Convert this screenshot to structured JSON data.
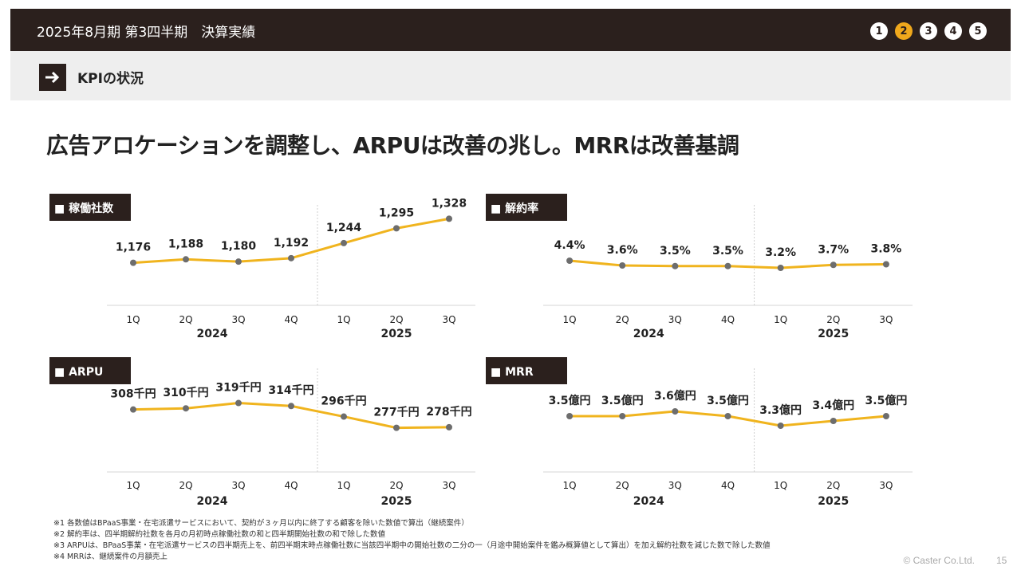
{
  "header": {
    "title": "2025年8月期 第3四半期　決算実績",
    "pages": [
      "1",
      "2",
      "3",
      "4",
      "5"
    ],
    "active_page": "2"
  },
  "section": {
    "label": "KPIの状況",
    "icon": "arrow-right-icon"
  },
  "headline": "広告アロケーションを調整し、ARPUは改善の兆し。MRRは改善基調",
  "colors": {
    "header_bg": "#2b201d",
    "line": "#f0b41e",
    "marker": "#6d6d6d",
    "active_page": "#f0a81c"
  },
  "chart_data": [
    {
      "type": "line",
      "title": "■ 稼働社数",
      "categories": [
        "1Q",
        "2Q",
        "3Q",
        "4Q",
        "1Q",
        "2Q",
        "3Q"
      ],
      "groups": [
        {
          "label": "2024",
          "count": 4
        },
        {
          "label": "2025",
          "count": 3
        }
      ],
      "values": [
        1176,
        1188,
        1180,
        1192,
        1244,
        1295,
        1328
      ],
      "labels": [
        "1,176",
        "1,188",
        "1,180",
        "1,192",
        "1,244",
        "1,295",
        "1,328"
      ],
      "ylim": [
        1120,
        1340
      ]
    },
    {
      "type": "line",
      "title": "■ 解約率",
      "categories": [
        "1Q",
        "2Q",
        "3Q",
        "4Q",
        "1Q",
        "2Q",
        "3Q"
      ],
      "groups": [
        {
          "label": "2024",
          "count": 4
        },
        {
          "label": "2025",
          "count": 3
        }
      ],
      "values": [
        4.4,
        3.6,
        3.5,
        3.5,
        3.2,
        3.7,
        3.8
      ],
      "labels": [
        "4.4%",
        "3.6%",
        "3.5%",
        "3.5%",
        "3.2%",
        "3.7%",
        "3.8%"
      ],
      "ylim": [
        0,
        8
      ]
    },
    {
      "type": "line",
      "title": "■ ARPU",
      "categories": [
        "1Q",
        "2Q",
        "3Q",
        "4Q",
        "1Q",
        "2Q",
        "3Q"
      ],
      "groups": [
        {
          "label": "2024",
          "count": 4
        },
        {
          "label": "2025",
          "count": 3
        }
      ],
      "values": [
        308,
        310,
        319,
        314,
        296,
        277,
        278
      ],
      "labels": [
        "308千円",
        "310千円",
        "319千円",
        "314千円",
        "296千円",
        "277千円",
        "278千円"
      ],
      "ylim": [
        240,
        340
      ]
    },
    {
      "type": "line",
      "title": "■ MRR",
      "categories": [
        "1Q",
        "2Q",
        "3Q",
        "4Q",
        "1Q",
        "2Q",
        "3Q"
      ],
      "groups": [
        {
          "label": "2024",
          "count": 4
        },
        {
          "label": "2025",
          "count": 3
        }
      ],
      "values": [
        3.5,
        3.5,
        3.6,
        3.5,
        3.3,
        3.4,
        3.5
      ],
      "labels": [
        "3.5億円",
        "3.5億円",
        "3.6億円",
        "3.5億円",
        "3.3億円",
        "3.4億円",
        "3.5億円"
      ],
      "ylim": [
        3.0,
        3.7
      ]
    }
  ],
  "footnotes": [
    "※1 各数値はBPaaS事業・在宅派遣サービスにおいて、契約が３ヶ月以内に終了する顧客を除いた数値で算出（継続案件）",
    "※2 解約率は、四半期解約社数を各月の月初時点稼働社数の和と四半期開始社数の和で除した数値",
    "※3 ARPUは、BPaaS事業・在宅派遣サービスの四半期売上を、前四半期末時点稼働社数に当該四半期中の開始社数の二分の一（月途中開始案件を鑑み概算値として算出）を加え解約社数を減じた数で除した数値",
    "※4 MRRは、継続案件の月額売上"
  ],
  "copyright": "© Caster Co.Ltd.",
  "page_number": "15"
}
